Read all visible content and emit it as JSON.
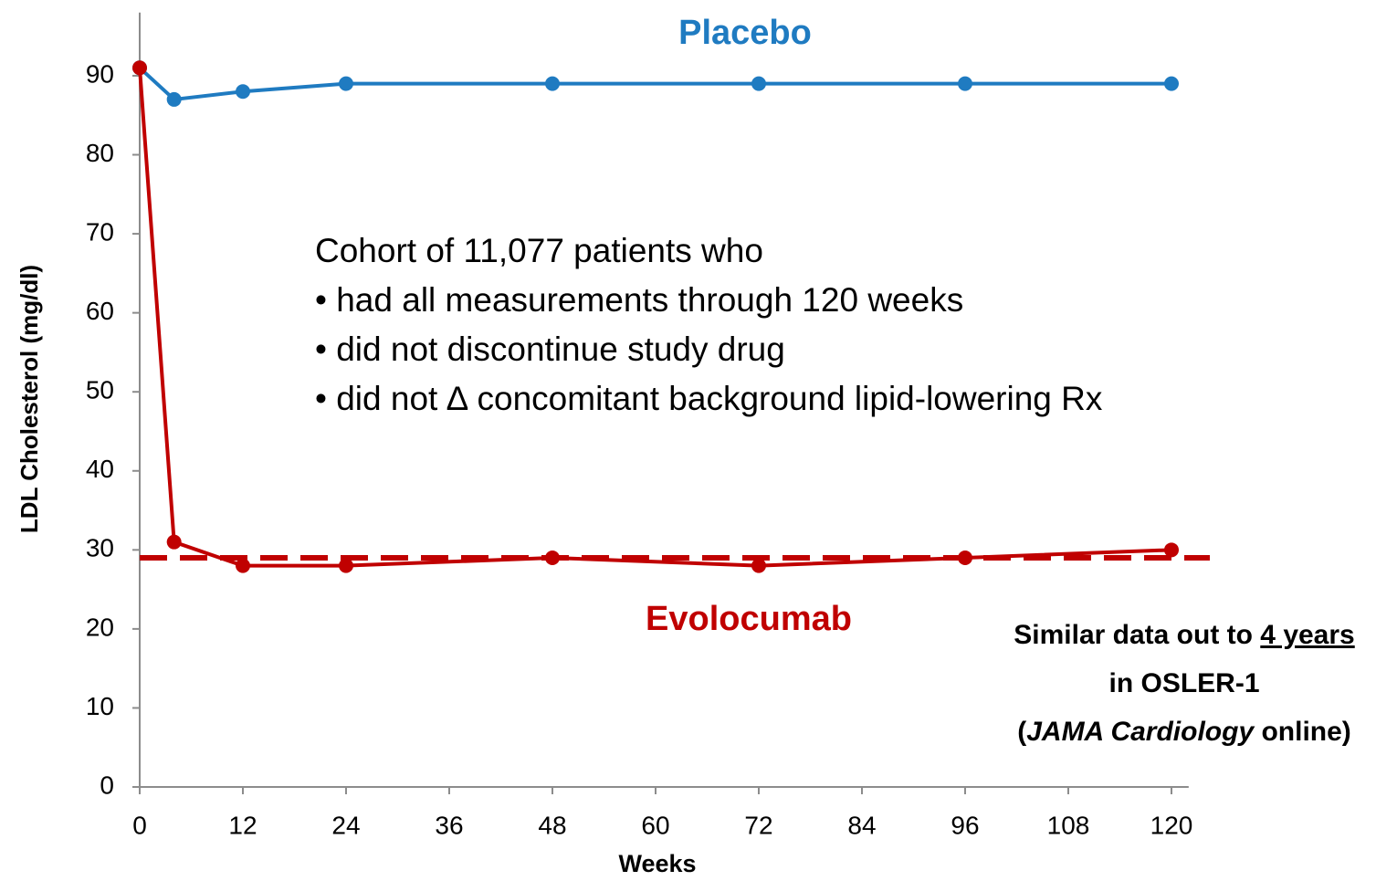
{
  "chart_data": {
    "type": "line",
    "x_label": "Weeks",
    "y_label": "LDL Cholesterol (mg/dl)",
    "x": [
      0,
      4,
      12,
      24,
      48,
      72,
      96,
      120
    ],
    "series": [
      {
        "name": "Placebo",
        "color": "#1f7bc1",
        "values": [
          91,
          87,
          88,
          89,
          89,
          89,
          89,
          89
        ]
      },
      {
        "name": "Evolocumab",
        "color": "#c00000",
        "values": [
          91,
          31,
          28,
          28,
          29,
          28,
          29,
          30
        ]
      }
    ],
    "reference_line": {
      "value": 29,
      "color": "#c00000",
      "dashed": true
    },
    "xlim": [
      0,
      122
    ],
    "ylim": [
      0,
      98
    ],
    "xticks": [
      0,
      12,
      24,
      36,
      48,
      60,
      72,
      84,
      96,
      108,
      120
    ],
    "yticks": [
      0,
      10,
      20,
      30,
      40,
      50,
      60,
      70,
      80,
      90
    ],
    "annotation_lines": [
      "Cohort of 11,077 patients who",
      "• had all measurements through 120 weeks",
      "• did not discontinue study drug",
      "• did not ∆ concomitant background lipid-lowering Rx"
    ],
    "note_lines": [
      [
        {
          "text": "Similar data out to "
        },
        {
          "text": "4 years",
          "underline": true
        }
      ],
      [
        {
          "text": "in OSLER-1"
        }
      ],
      [
        {
          "text": "("
        },
        {
          "text": "JAMA Cardiology",
          "italic": true
        },
        {
          "text": " online)"
        }
      ]
    ]
  }
}
